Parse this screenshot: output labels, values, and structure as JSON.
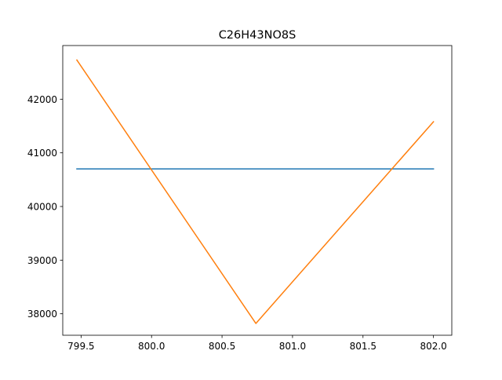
{
  "chart_data": {
    "type": "line",
    "title": "C26H43NO8S",
    "xlabel": "",
    "ylabel": "",
    "xlim": [
      799.37,
      802.13
    ],
    "ylim": [
      37600,
      43000
    ],
    "x_ticks": [
      799.5,
      800.0,
      800.5,
      801.0,
      801.5,
      802.0
    ],
    "x_tick_labels": [
      "799.5",
      "800.0",
      "800.5",
      "801.0",
      "801.5",
      "802.0"
    ],
    "y_ticks": [
      38000,
      39000,
      40000,
      41000,
      42000
    ],
    "y_tick_labels": [
      "38000",
      "39000",
      "40000",
      "41000",
      "42000"
    ],
    "grid": false,
    "legend": false,
    "series": [
      {
        "color": "#1f77b4",
        "x": [
          799.47,
          802.0
        ],
        "y": [
          40700,
          40700
        ]
      },
      {
        "color": "#ff7f0e",
        "x": [
          799.47,
          800.74,
          802.0
        ],
        "y": [
          42730,
          37820,
          41580
        ]
      }
    ]
  }
}
